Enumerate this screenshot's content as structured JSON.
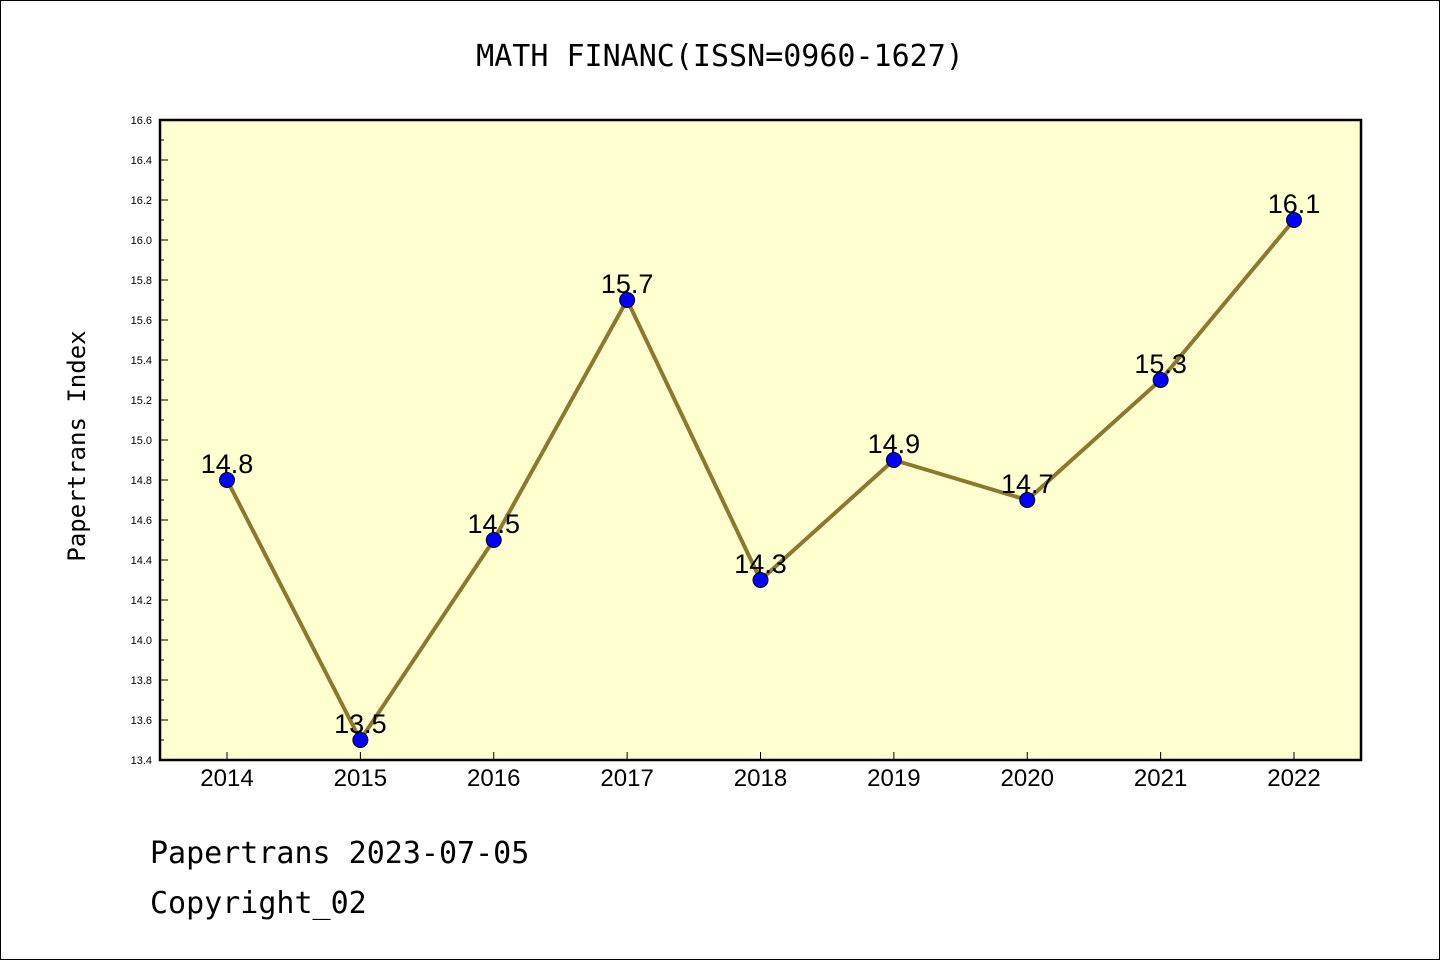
{
  "chart_data": {
    "type": "line",
    "title": "MATH FINANC(ISSN=0960-1627)",
    "ylabel": "Papertrans Index",
    "xlabel": "",
    "categories": [
      "2014",
      "2015",
      "2016",
      "2017",
      "2018",
      "2019",
      "2020",
      "2021",
      "2022"
    ],
    "values": [
      14.8,
      13.5,
      14.5,
      15.7,
      14.3,
      14.9,
      14.7,
      15.3,
      16.1
    ],
    "data_labels": [
      "14.8",
      "13.5",
      "14.5",
      "15.7",
      "14.3",
      "14.9",
      "14.7",
      "15.3",
      "16.1"
    ],
    "ylim": [
      13.4,
      16.6
    ],
    "yticks": [
      "13.4",
      "13.6",
      "13.8",
      "14.0",
      "14.2",
      "14.4",
      "14.6",
      "14.8",
      "15.0",
      "15.2",
      "15.4",
      "15.6",
      "15.8",
      "16.0",
      "16.2",
      "16.4",
      "16.6"
    ],
    "grid": false,
    "colors": {
      "plot_background": "#FFFFD0",
      "line": "#8B7A2E",
      "marker": "#0000FF"
    }
  },
  "footer": {
    "line1": "Papertrans 2023-07-05",
    "line2": "Copyright_02"
  }
}
